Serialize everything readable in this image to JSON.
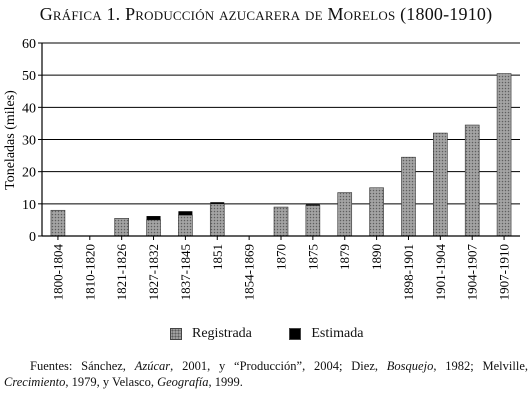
{
  "title": "Gráfica 1. Producción azucarera de Morelos (1800-1910)",
  "chart_data": {
    "type": "bar",
    "stacked": true,
    "ylabel": "Toneladas (miles)",
    "xlabel": "",
    "ylim": [
      0,
      60
    ],
    "yticks": [
      0,
      10,
      20,
      30,
      40,
      50,
      60
    ],
    "grid": "horizontal",
    "legend_position": "bottom",
    "categories": [
      "1800-1804",
      "1810-1820",
      "1821-1826",
      "1827-1832",
      "1837-1845",
      "1851",
      "1854-1869",
      "1870",
      "1875",
      "1879",
      "1890",
      "1898-1901",
      "1901-1904",
      "1904-1907",
      "1907-1910"
    ],
    "series": [
      {
        "name": "Registrada",
        "color": "#9d9d9d",
        "values": [
          8,
          0,
          5.5,
          5,
          6.5,
          10,
          0,
          9,
          9.5,
          13.5,
          15,
          24.5,
          32,
          34.5,
          50.5
        ]
      },
      {
        "name": "Estimada",
        "color": "#000000",
        "values": [
          0,
          0,
          0,
          1.2,
          1.2,
          0.5,
          0,
          0,
          0.3,
          0,
          0,
          0,
          0,
          0,
          0
        ]
      }
    ]
  },
  "source_note": {
    "prefix": "Fuentes: Sánchez, ",
    "work1": "Azúcar",
    "text1": ", 2001, y “Producción”, 2004; Diez, ",
    "work2": "Bosquejo",
    "text2": ", 1982; Melville, ",
    "work3": "Crecimiento",
    "text3": ", 1979, y Velasco, ",
    "work4": "Geografía",
    "text4": ", 1999."
  }
}
